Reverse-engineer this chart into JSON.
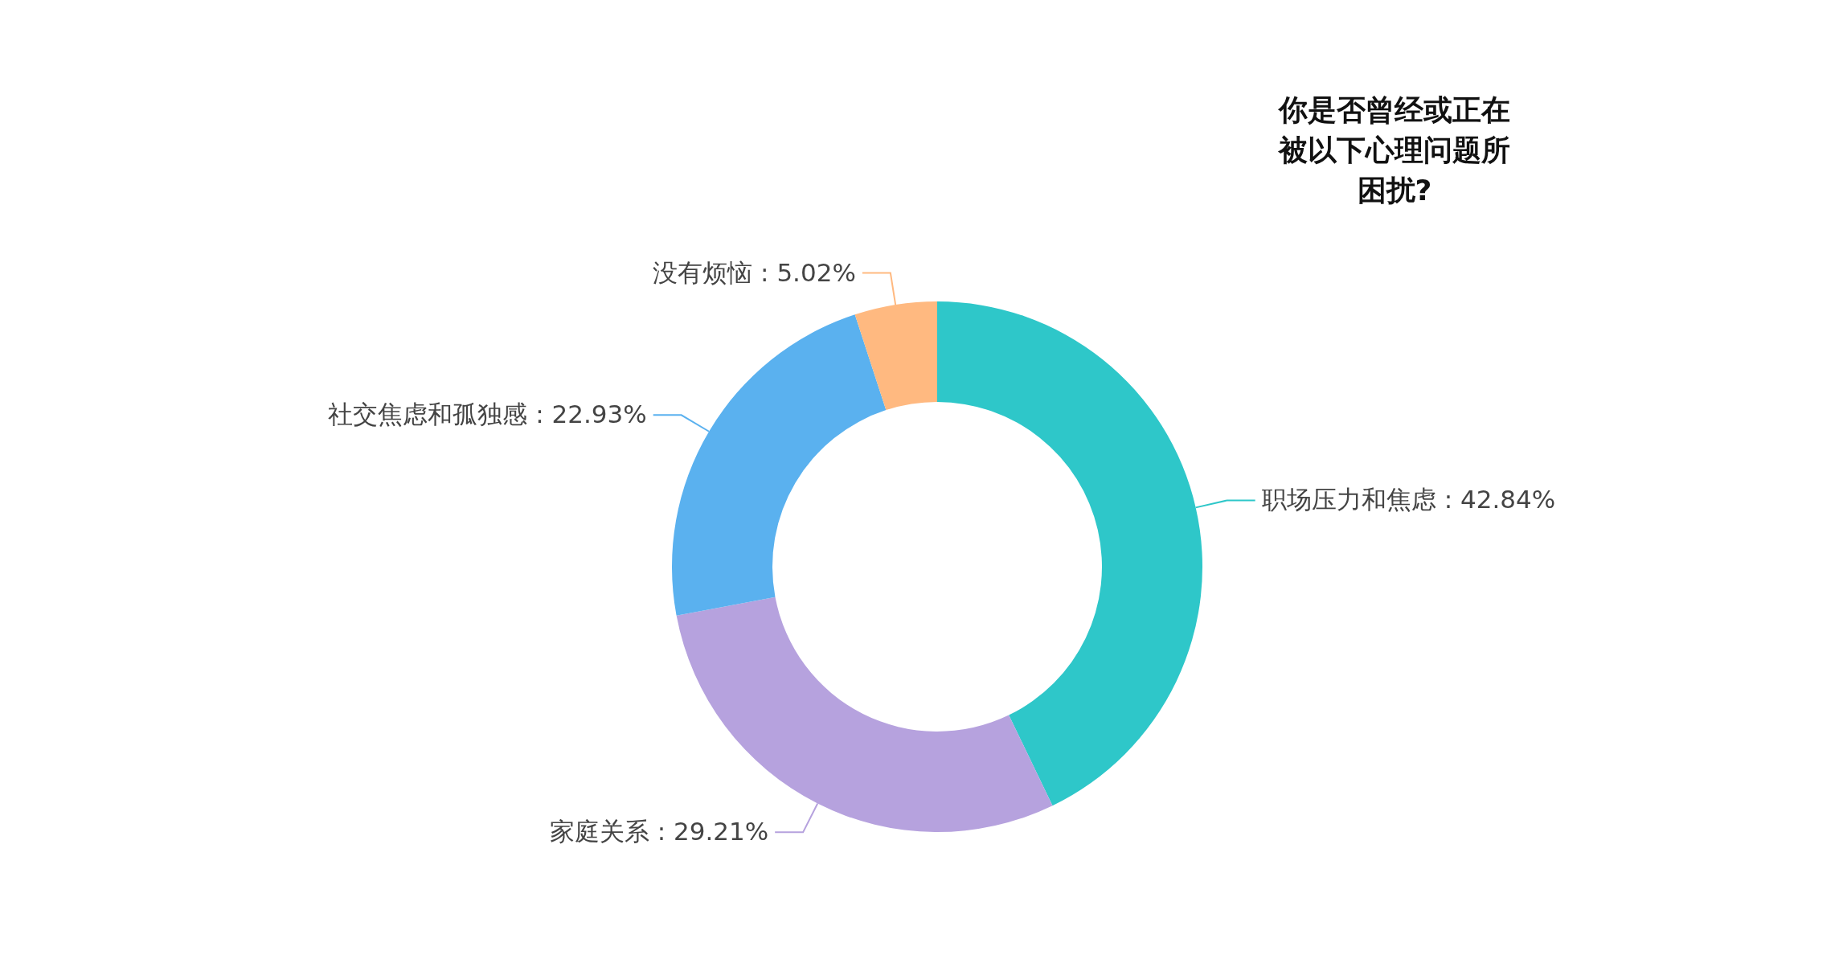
{
  "chart_data": {
    "type": "donut",
    "title": "你是否曾经或正在被以下心理问题所困扰?",
    "categories": [
      "职场压力和焦虑",
      "家庭关系",
      "社交焦虑和孤独感",
      "没有烦恼"
    ],
    "values": [
      42.84,
      29.21,
      22.93,
      5.02
    ],
    "colors": [
      "#2ec7c9",
      "#b6a2de",
      "#5ab1ef",
      "#ffb980"
    ],
    "value_labels": [
      ": 42.84%",
      ": 29.21%",
      ": 22.93%",
      ": 5.02%"
    ]
  }
}
